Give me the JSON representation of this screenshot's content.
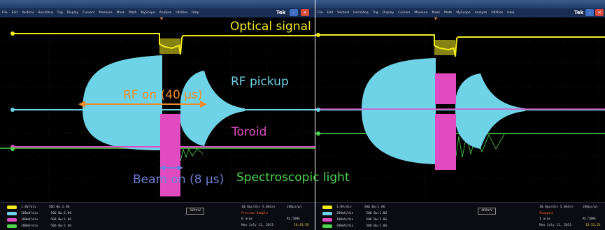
{
  "left_scope": {
    "brand": "Tek",
    "menu": [
      "File",
      "Edit",
      "Vertical",
      "Horiz/Acq",
      "Trig",
      "Display",
      "Cursors",
      "Measure",
      "Mask",
      "Math",
      "MyScope",
      "Analyze",
      "Utilities",
      "Help"
    ],
    "annotations": {
      "optical_signal": "Optical signal",
      "rf_on": "RF on (40 μs)",
      "rf_pickup": "RF pickup",
      "toroid": "Toroid",
      "beam_on": "Beam on (8 μs)",
      "spectroscopic_light": "Spectroscopic light"
    },
    "channels": [
      {
        "ch": "C1",
        "scale": "1.0V/div",
        "impedance": "50Ω Bw:1.0G"
      },
      {
        "ch": "C2",
        "scale": "100mV/div",
        "impedance": "50Ω Bw:1.0G"
      },
      {
        "ch": "C3",
        "scale": "100mV/div",
        "impedance": "50Ω Bw:1.0G"
      },
      {
        "ch": "C4",
        "scale": "200mV/div",
        "impedance": "50Ω Bw:1.0G"
      }
    ],
    "trigger_box": "380mV",
    "acquisition": {
      "timebase": "10.0μs/div  5.0GS/s",
      "record": "200ps/pt",
      "mode": "Preview  Sample",
      "acqs": "0 acqs",
      "rl": "RL:500k",
      "date": "Mon  July 11, 2011",
      "time": "16:43:59"
    }
  },
  "right_scope": {
    "brand": "Tek",
    "menu": [
      "File",
      "Edit",
      "Vertical",
      "Horiz/Acq",
      "Trig",
      "Display",
      "Cursors",
      "Measure",
      "Mask",
      "Math",
      "MyScope",
      "Analyze",
      "Utilities",
      "Help"
    ],
    "channels": [
      {
        "ch": "C1",
        "scale": "1.0V/div",
        "impedance": "50Ω Bw:1.0G"
      },
      {
        "ch": "C2",
        "scale": "200mV/div",
        "impedance": "50Ω Bw:1.0G"
      },
      {
        "ch": "C3",
        "scale": "100mV/div",
        "impedance": "50Ω Bw:1.0G"
      },
      {
        "ch": "C4",
        "scale": "200mV/div",
        "impedance": "50Ω Bw:1.0G"
      }
    ],
    "trigger_box": "400mV",
    "acquisition": {
      "timebase": "10.0μs/div  5.0GS/s",
      "record": "200ps/pt",
      "mode": "Stopped",
      "acqs": "1 acqs",
      "rl": "RL:500k",
      "date": "Mon  July 11, 2011",
      "time": "13:52:21"
    }
  },
  "colors": {
    "optical": "#f2ec1f",
    "rf": "#6fd3e8",
    "toroid": "#e04cc0",
    "spectro": "#4cd64c",
    "rf_arrow": "#f08a2a",
    "beam_arrow": "#6f7fd8"
  }
}
